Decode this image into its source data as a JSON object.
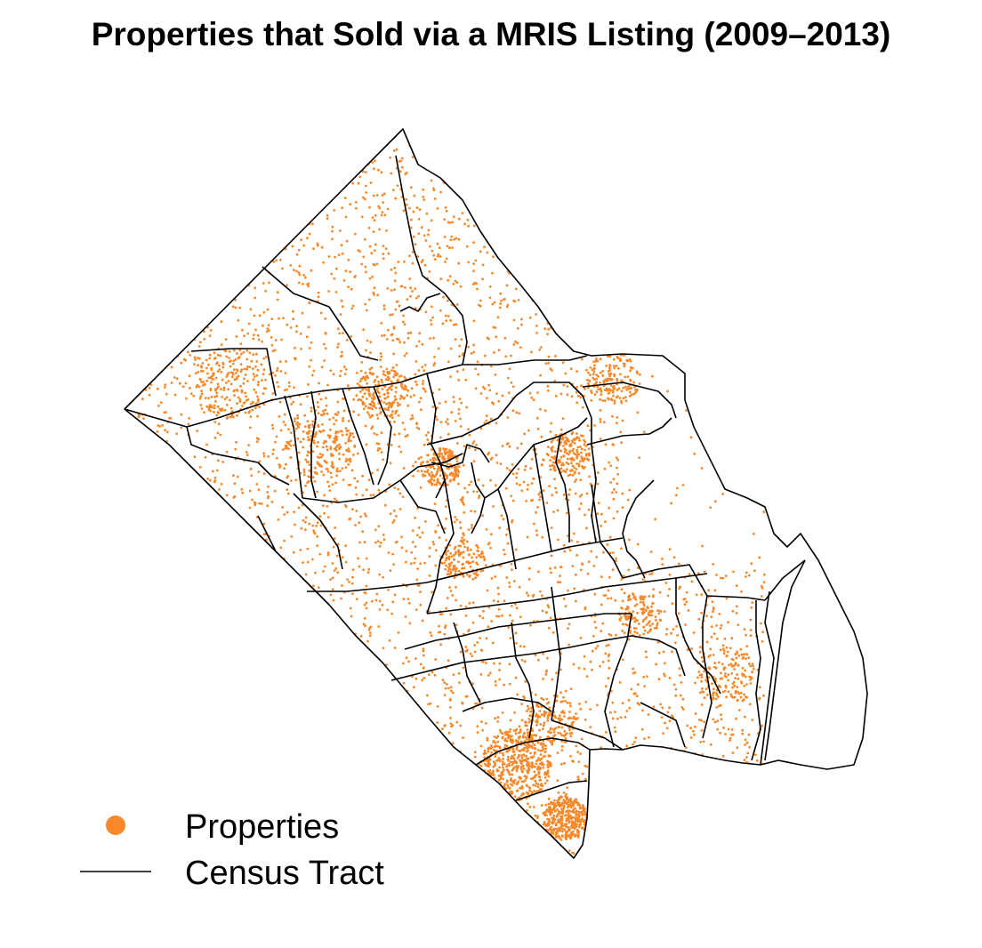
{
  "title": "Properties that Sold via a MRIS Listing (2009–2013)",
  "colors": {
    "property": "#f8892a",
    "tract": "#000000",
    "background": "#ffffff"
  },
  "legend": {
    "position": "bottom-left",
    "items": [
      {
        "label": "Properties",
        "symbol": "filled-circle"
      },
      {
        "label": "Census Tract",
        "symbol": "line"
      }
    ]
  }
}
